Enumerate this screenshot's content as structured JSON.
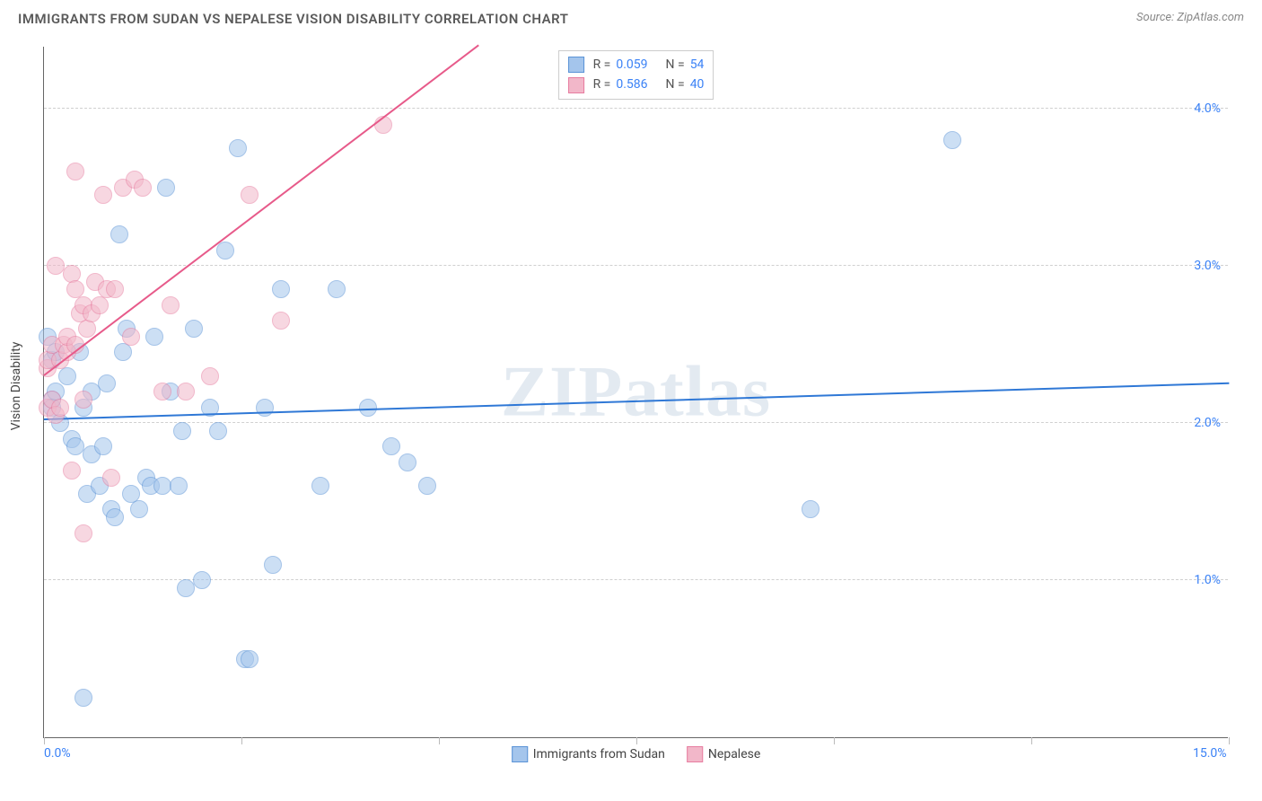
{
  "header": {
    "title": "IMMIGRANTS FROM SUDAN VS NEPALESE VISION DISABILITY CORRELATION CHART",
    "source": "Source: ZipAtlas.com"
  },
  "watermark": "ZIPatlas",
  "chart": {
    "type": "scatter",
    "y_axis_label": "Vision Disability",
    "xlim": [
      0,
      15
    ],
    "ylim": [
      0,
      4.4
    ],
    "x_ticks": [
      0,
      2.5,
      5,
      7.5,
      10,
      12.5,
      15
    ],
    "x_tick_labels": {
      "0": "0.0%",
      "15": "15.0%"
    },
    "y_ticks": [
      1.0,
      2.0,
      3.0,
      4.0
    ],
    "y_tick_labels": {
      "1.0": "1.0%",
      "2.0": "2.0%",
      "3.0": "3.0%",
      "4.0": "4.0%"
    },
    "background_color": "#ffffff",
    "grid_color": "#d0d0d0",
    "axis_color": "#666666",
    "tick_label_color": "#3b82f6",
    "marker_radius": 10,
    "marker_opacity": 0.55,
    "series": [
      {
        "name": "Immigrants from Sudan",
        "fill_color": "#a4c5ec",
        "stroke_color": "#5a93d6",
        "r": 0.059,
        "n": 54,
        "trend": {
          "x1": 0,
          "y1": 2.02,
          "x2": 15,
          "y2": 2.25,
          "color": "#2f78d6",
          "width": 2
        },
        "points": [
          [
            0.05,
            2.55
          ],
          [
            0.1,
            2.4
          ],
          [
            0.1,
            2.15
          ],
          [
            0.1,
            2.1
          ],
          [
            0.15,
            2.2
          ],
          [
            0.15,
            2.45
          ],
          [
            0.2,
            2.0
          ],
          [
            0.3,
            2.3
          ],
          [
            0.35,
            1.9
          ],
          [
            0.4,
            1.85
          ],
          [
            0.45,
            2.45
          ],
          [
            0.5,
            0.25
          ],
          [
            0.5,
            2.1
          ],
          [
            0.55,
            1.55
          ],
          [
            0.6,
            1.8
          ],
          [
            0.6,
            2.2
          ],
          [
            0.7,
            1.6
          ],
          [
            0.75,
            1.85
          ],
          [
            0.8,
            2.25
          ],
          [
            0.85,
            1.45
          ],
          [
            0.9,
            1.4
          ],
          [
            0.95,
            3.2
          ],
          [
            1.0,
            2.45
          ],
          [
            1.05,
            2.6
          ],
          [
            1.1,
            1.55
          ],
          [
            1.2,
            1.45
          ],
          [
            1.3,
            1.65
          ],
          [
            1.35,
            1.6
          ],
          [
            1.4,
            2.55
          ],
          [
            1.5,
            1.6
          ],
          [
            1.55,
            3.5
          ],
          [
            1.6,
            2.2
          ],
          [
            1.7,
            1.6
          ],
          [
            1.75,
            1.95
          ],
          [
            1.8,
            0.95
          ],
          [
            1.9,
            2.6
          ],
          [
            2.0,
            1.0
          ],
          [
            2.1,
            2.1
          ],
          [
            2.2,
            1.95
          ],
          [
            2.3,
            3.1
          ],
          [
            2.45,
            3.75
          ],
          [
            2.55,
            0.5
          ],
          [
            2.6,
            0.5
          ],
          [
            2.8,
            2.1
          ],
          [
            2.9,
            1.1
          ],
          [
            3.0,
            2.85
          ],
          [
            3.5,
            1.6
          ],
          [
            3.7,
            2.85
          ],
          [
            4.1,
            2.1
          ],
          [
            4.4,
            1.85
          ],
          [
            4.6,
            1.75
          ],
          [
            4.85,
            1.6
          ],
          [
            9.7,
            1.45
          ],
          [
            11.5,
            3.8
          ]
        ]
      },
      {
        "name": "Nepalese",
        "fill_color": "#f2b7c9",
        "stroke_color": "#e77da0",
        "r": 0.586,
        "n": 40,
        "trend": {
          "x1": 0,
          "y1": 2.3,
          "x2": 5.5,
          "y2": 4.4,
          "color": "#e75a8a",
          "width": 2
        },
        "points": [
          [
            0.05,
            2.1
          ],
          [
            0.05,
            2.35
          ],
          [
            0.05,
            2.4
          ],
          [
            0.1,
            2.5
          ],
          [
            0.1,
            2.15
          ],
          [
            0.15,
            2.05
          ],
          [
            0.15,
            3.0
          ],
          [
            0.2,
            2.4
          ],
          [
            0.2,
            2.1
          ],
          [
            0.25,
            2.5
          ],
          [
            0.3,
            2.45
          ],
          [
            0.3,
            2.55
          ],
          [
            0.35,
            1.7
          ],
          [
            0.35,
            2.95
          ],
          [
            0.4,
            2.85
          ],
          [
            0.4,
            2.5
          ],
          [
            0.4,
            3.6
          ],
          [
            0.45,
            2.7
          ],
          [
            0.5,
            2.15
          ],
          [
            0.5,
            2.75
          ],
          [
            0.5,
            1.3
          ],
          [
            0.55,
            2.6
          ],
          [
            0.6,
            2.7
          ],
          [
            0.65,
            2.9
          ],
          [
            0.7,
            2.75
          ],
          [
            0.75,
            3.45
          ],
          [
            0.8,
            2.85
          ],
          [
            0.85,
            1.65
          ],
          [
            0.9,
            2.85
          ],
          [
            1.0,
            3.5
          ],
          [
            1.1,
            2.55
          ],
          [
            1.15,
            3.55
          ],
          [
            1.25,
            3.5
          ],
          [
            1.5,
            2.2
          ],
          [
            1.6,
            2.75
          ],
          [
            1.8,
            2.2
          ],
          [
            2.1,
            2.3
          ],
          [
            2.6,
            3.45
          ],
          [
            3.0,
            2.65
          ],
          [
            4.3,
            3.9
          ]
        ]
      }
    ],
    "legend_top": {
      "r_label": "R =",
      "n_label": "N ="
    },
    "legend_bottom": [
      {
        "swatch_fill": "#a4c5ec",
        "swatch_stroke": "#5a93d6",
        "label": "Immigrants from Sudan"
      },
      {
        "swatch_fill": "#f2b7c9",
        "swatch_stroke": "#e77da0",
        "label": "Nepalese"
      }
    ]
  }
}
